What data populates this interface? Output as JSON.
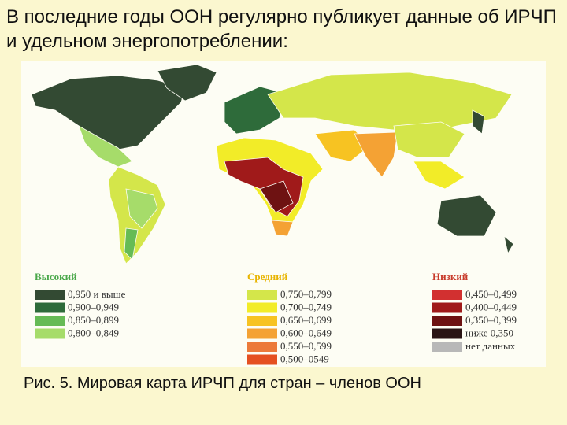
{
  "title": "В последние годы ООН регулярно публикует данные об ИРЧП и удельном энергопотреблении:",
  "legend": [
    {
      "heading": "Высокий",
      "color": "#4aa84a",
      "items": [
        {
          "label": "0,950 и выше",
          "color": "#334a33"
        },
        {
          "label": "0,900–0,949",
          "color": "#2e6b3a"
        },
        {
          "label": "0,850–0,899",
          "color": "#66bb55"
        },
        {
          "label": "0,800–0,849",
          "color": "#a6dc6a"
        }
      ]
    },
    {
      "heading": "Средний",
      "color": "#e8b400",
      "items": [
        {
          "label": "0,750–0,799",
          "color": "#d4e64a"
        },
        {
          "label": "0,700–0,749",
          "color": "#f2ec28"
        },
        {
          "label": "0,650–0,699",
          "color": "#f7c322"
        },
        {
          "label": "0,600–0,649",
          "color": "#f4a234"
        },
        {
          "label": "0,550–0,599",
          "color": "#ec7a3a"
        },
        {
          "label": "0,500–0549",
          "color": "#e55020"
        }
      ]
    },
    {
      "heading": "Низкий",
      "color": "#c83a2a",
      "items": [
        {
          "label": "0,450–0,499",
          "color": "#d23030"
        },
        {
          "label": "0,400–0,449",
          "color": "#a01a1a"
        },
        {
          "label": "0,350–0,399",
          "color": "#6e1212"
        },
        {
          "label": "ниже 0,350",
          "color": "#2a1414"
        },
        {
          "label": "нет данных",
          "color": "#b8b8b8"
        }
      ]
    }
  ],
  "caption": "Рис. 5. Мировая карта ИРЧП для стран – членов ООН"
}
